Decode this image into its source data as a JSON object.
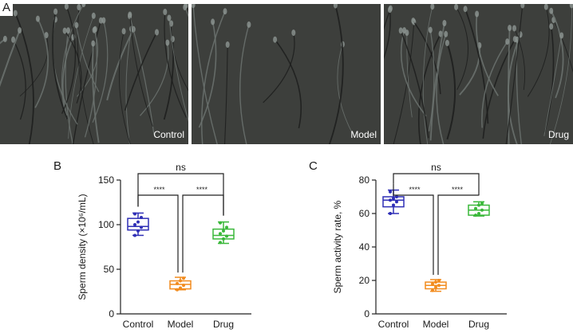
{
  "panel_letters": {
    "a": "A",
    "b": "B",
    "c": "C"
  },
  "micrographs": [
    {
      "label": "Control",
      "fibers": 34
    },
    {
      "label": "Model",
      "fibers": 9
    },
    {
      "label": "Drug",
      "fibers": 30
    }
  ],
  "chart_data": [
    {
      "type": "box",
      "ylabel": "Sperm density (×10⁶/mL)",
      "ylim": [
        0,
        150
      ],
      "yticks": [
        0,
        50,
        100,
        150
      ],
      "categories": [
        "Control",
        "Model",
        "Drug"
      ],
      "colors": [
        "#2f2fb6",
        "#f28c1f",
        "#3ab83a"
      ],
      "boxes": [
        {
          "min": 88,
          "q1": 94,
          "median": 98,
          "q3": 107,
          "max": 113,
          "points": [
            88,
            93,
            97,
            100,
            103,
            108,
            112
          ]
        },
        {
          "min": 27,
          "q1": 28,
          "median": 33,
          "q3": 37,
          "max": 41,
          "points": [
            27,
            29,
            32,
            34,
            37,
            40
          ]
        },
        {
          "min": 79,
          "q1": 84,
          "median": 88,
          "q3": 95,
          "max": 103,
          "points": [
            80,
            84,
            87,
            90,
            93,
            97,
            102
          ]
        }
      ],
      "significance": [
        {
          "from": 0,
          "to": 1,
          "label": "****"
        },
        {
          "from": 1,
          "to": 2,
          "label": "****"
        },
        {
          "from": 0,
          "to": 2,
          "label": "ns"
        }
      ]
    },
    {
      "type": "box",
      "ylabel": "Sperm activity rate, %",
      "ylim": [
        0,
        80
      ],
      "yticks": [
        0,
        20,
        40,
        60,
        80
      ],
      "categories": [
        "Control",
        "Model",
        "Drug"
      ],
      "colors": [
        "#2f2fb6",
        "#f28c1f",
        "#3ab83a"
      ],
      "boxes": [
        {
          "min": 60,
          "q1": 64,
          "median": 68,
          "q3": 70,
          "max": 74,
          "points": [
            60,
            65,
            67,
            68,
            69,
            70,
            73
          ]
        },
        {
          "min": 13.5,
          "q1": 15,
          "median": 17,
          "q3": 19,
          "max": 20.5,
          "points": [
            14,
            16,
            17,
            18,
            19,
            20
          ]
        },
        {
          "min": 58.5,
          "q1": 59,
          "median": 62,
          "q3": 65,
          "max": 67,
          "points": [
            59,
            60,
            62,
            63,
            65,
            66
          ]
        }
      ],
      "significance": [
        {
          "from": 0,
          "to": 1,
          "label": "****"
        },
        {
          "from": 1,
          "to": 2,
          "label": "****"
        },
        {
          "from": 0,
          "to": 2,
          "label": "ns"
        }
      ]
    }
  ]
}
